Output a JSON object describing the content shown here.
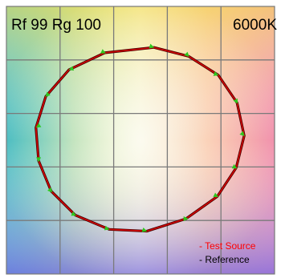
{
  "chart_data": {
    "type": "line",
    "title_left": "Rf 99 Rg 100",
    "title_right": "6000K",
    "legend": {
      "placement": "bottom-right",
      "items": [
        {
          "label": "- Test Source",
          "color": "#ff0000"
        },
        {
          "label": "- Reference",
          "color": "#000000"
        }
      ]
    },
    "grid": true,
    "xlim": [
      -1.5,
      1.5
    ],
    "ylim": [
      -1.5,
      1.5
    ],
    "series": [
      {
        "name": "Test Source",
        "color": "#cc0000",
        "x": [
          0.15,
          0.54,
          0.87,
          1.08,
          1.16,
          1.07,
          0.86,
          0.51,
          0.07,
          -0.35,
          -0.73,
          -1.0,
          -1.14,
          -1.17,
          -1.06,
          -0.8,
          -0.4
        ],
        "y": [
          1.04,
          0.94,
          0.73,
          0.42,
          0.05,
          -0.31,
          -0.63,
          -0.88,
          -1.02,
          -1.0,
          -0.84,
          -0.57,
          -0.23,
          0.14,
          0.49,
          0.79,
          0.98
        ]
      },
      {
        "name": "Reference",
        "color": "#2ec81e",
        "x": [
          0.12,
          0.52,
          0.84,
          1.07,
          1.14,
          1.05,
          0.84,
          0.5,
          0.04,
          -0.38,
          -0.75,
          -1.01,
          -1.14,
          -1.14,
          -1.04,
          -0.77,
          -0.42
        ],
        "y": [
          1.05,
          0.96,
          0.74,
          0.44,
          0.07,
          -0.3,
          -0.62,
          -0.88,
          -1.01,
          -0.99,
          -0.83,
          -0.56,
          -0.21,
          0.16,
          0.51,
          0.8,
          0.99
        ]
      }
    ]
  }
}
